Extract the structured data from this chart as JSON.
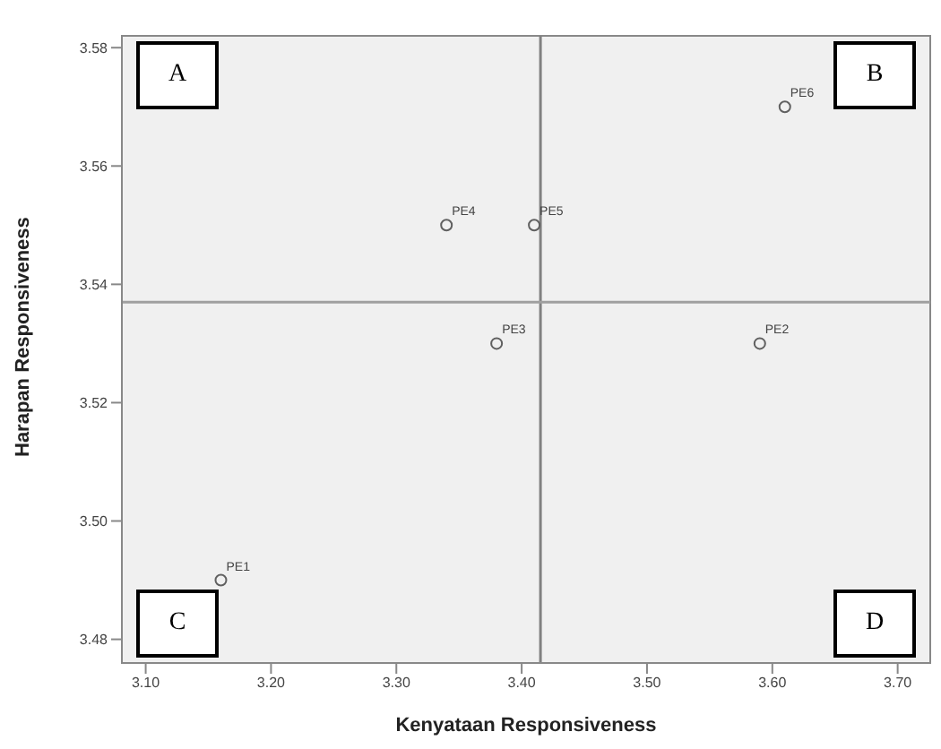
{
  "chart_data": {
    "type": "scatter",
    "xlabel": "Kenyataan Responsiveness",
    "ylabel": "Harapan Responsiveness",
    "series": [
      {
        "color": "#606060",
        "x": [
          3.16,
          3.59,
          3.38,
          3.34,
          3.41,
          3.61
        ],
        "values": [
          3.49,
          3.53,
          3.53,
          3.55,
          3.55,
          3.57
        ]
      }
    ],
    "xlim": [
      3.081,
      3.726
    ],
    "xticks": [
      {
        "value": 3.1,
        "label": "3.10"
      },
      {
        "value": 3.2,
        "label": "3.20"
      },
      {
        "value": 3.3,
        "label": "3.30"
      },
      {
        "value": 3.4,
        "label": "3.40"
      },
      {
        "value": 3.5,
        "label": "3.50"
      },
      {
        "value": 3.6,
        "label": "3.60"
      },
      {
        "value": 3.7,
        "label": "3.70"
      }
    ],
    "ylim": [
      3.476,
      3.582
    ],
    "yticks": [
      {
        "value": 3.48,
        "label": "3.48"
      },
      {
        "value": 3.5,
        "label": "3.50"
      },
      {
        "value": 3.52,
        "label": "3.52"
      },
      {
        "value": 3.54,
        "label": "3.54"
      },
      {
        "value": 3.56,
        "label": "3.56"
      },
      {
        "value": 3.58,
        "label": "3.58"
      }
    ],
    "ref_lines": [
      {
        "axis": "x",
        "value": 3.415,
        "color": "#808080"
      },
      {
        "axis": "y",
        "value": 3.537,
        "color": "#a0a0a0"
      }
    ],
    "marker": "circle",
    "legend": false,
    "annotations": [
      "A",
      "B",
      "C",
      "D",
      {
        "text": "PE1",
        "x": 3.16,
        "y": 3.49
      },
      {
        "text": "PE2",
        "x": 3.59,
        "y": 3.53
      },
      {
        "text": "PE3",
        "x": 3.38,
        "y": 3.53
      },
      {
        "text": "PE4",
        "x": 3.34,
        "y": 3.55
      },
      {
        "text": "PE5",
        "x": 3.41,
        "y": 3.55
      },
      {
        "text": "PE6",
        "x": 3.61,
        "y": 3.57
      }
    ]
  }
}
